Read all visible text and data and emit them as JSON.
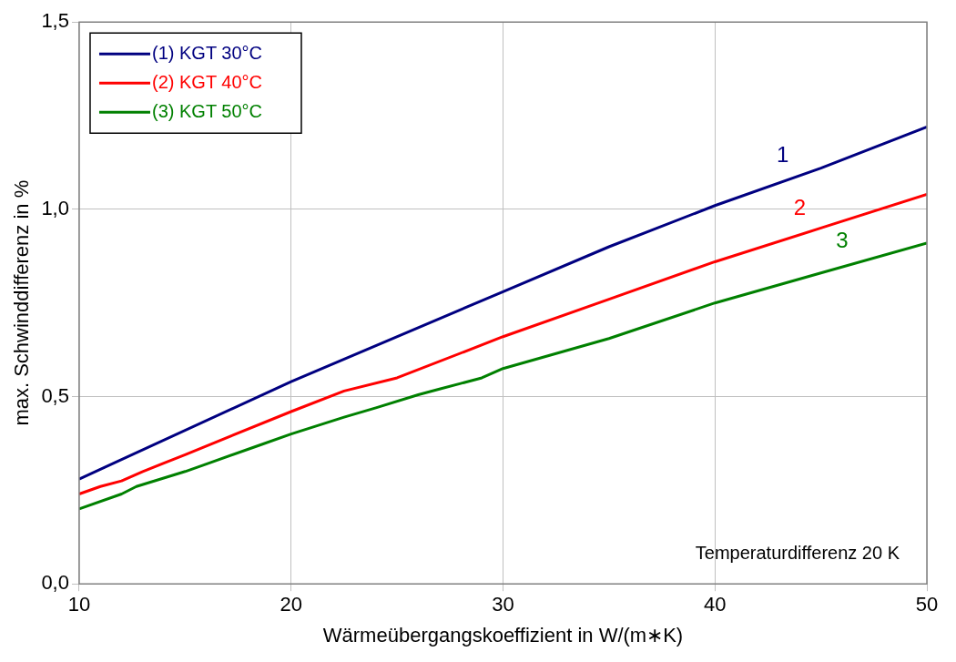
{
  "chart_data": {
    "type": "line",
    "xlabel": "Wärmeübergangskoeffizient in W/(m∗K)",
    "ylabel": "max. Schwinddifferenz in %",
    "xlim": [
      10,
      50
    ],
    "xticks": [
      10,
      20,
      30,
      40,
      50
    ],
    "ylim": [
      0,
      1.5
    ],
    "yticks": [
      {
        "value": 0,
        "label": "0,0"
      },
      {
        "value": 0.5,
        "label": "0,5"
      },
      {
        "value": 1,
        "label": "1,0"
      },
      {
        "value": 1.5,
        "label": "1,5"
      }
    ],
    "grid": true,
    "legend": "top left",
    "marker": "none",
    "line_style": "solid",
    "series": [
      {
        "name": "(1) KGT 30°C",
        "color": "#000080",
        "x": [
          10,
          20,
          30,
          35,
          40,
          45,
          50
        ],
        "values": [
          0.28,
          0.54,
          0.78,
          0.9,
          1.01,
          1.11,
          1.22
        ]
      },
      {
        "name": "(2) KGT 40°C",
        "color": "#ff0000",
        "x": [
          10,
          11,
          12,
          13,
          15,
          20,
          22.5,
          25,
          30,
          35,
          40,
          45,
          50
        ],
        "values": [
          0.24,
          0.26,
          0.275,
          0.3,
          0.345,
          0.46,
          0.515,
          0.55,
          0.66,
          0.76,
          0.86,
          0.95,
          1.04
        ]
      },
      {
        "name": "(3) KGT 50°C",
        "color": "#008000",
        "x": [
          10,
          12,
          12.7,
          15,
          16,
          18.5,
          20,
          22.5,
          24,
          26,
          27,
          28,
          29,
          30,
          35,
          40,
          45,
          50
        ],
        "values": [
          0.2,
          0.24,
          0.26,
          0.3,
          0.32,
          0.37,
          0.4,
          0.445,
          0.47,
          0.505,
          0.52,
          0.535,
          0.55,
          0.575,
          0.655,
          0.75,
          0.83,
          0.91
        ]
      }
    ],
    "annotations": [
      "1",
      "2",
      "3",
      "Temperaturdifferenz 20 K"
    ]
  }
}
